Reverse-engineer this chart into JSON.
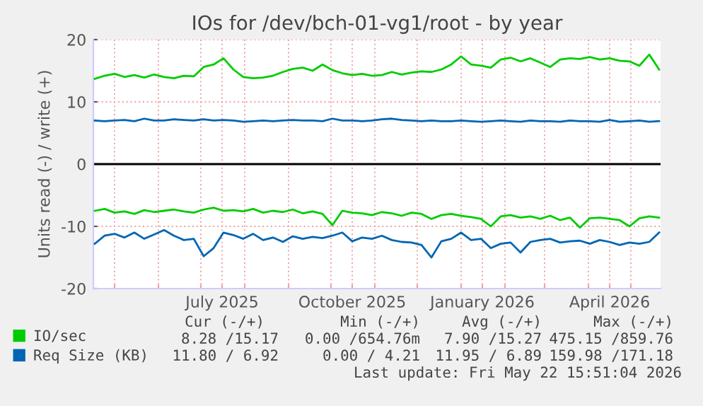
{
  "chart_data": {
    "type": "line",
    "title": "IOs for /dev/bch-01-vg1/root - by year",
    "ylabel": "Units read (-) / write (+)",
    "x": [
      "2025-04-17",
      "2025-04-24",
      "2025-05-01",
      "2025-05-08",
      "2025-05-15",
      "2025-05-22",
      "2025-05-29",
      "2025-06-05",
      "2025-06-12",
      "2025-06-19",
      "2025-06-26",
      "2025-07-03",
      "2025-07-10",
      "2025-07-17",
      "2025-07-24",
      "2025-07-31",
      "2025-08-07",
      "2025-08-14",
      "2025-08-21",
      "2025-08-28",
      "2025-09-04",
      "2025-09-11",
      "2025-09-18",
      "2025-09-25",
      "2025-10-02",
      "2025-10-09",
      "2025-10-16",
      "2025-10-23",
      "2025-10-30",
      "2025-11-06",
      "2025-11-13",
      "2025-11-20",
      "2025-11-27",
      "2025-12-04",
      "2025-12-11",
      "2025-12-18",
      "2025-12-25",
      "2026-01-01",
      "2026-01-08",
      "2026-01-15",
      "2026-01-22",
      "2026-01-29",
      "2026-02-05",
      "2026-02-12",
      "2026-02-19",
      "2026-02-26",
      "2026-03-05",
      "2026-03-12",
      "2026-03-19",
      "2026-03-26",
      "2026-04-02",
      "2026-04-09",
      "2026-04-16",
      "2026-04-23",
      "2026-04-30",
      "2026-05-07",
      "2026-05-14",
      "2026-05-21"
    ],
    "series": [
      {
        "name": "IO/sec",
        "color": "#00cc00",
        "values": [
          13.7,
          14.2,
          14.5,
          14.0,
          14.3,
          13.9,
          14.4,
          14.0,
          13.8,
          14.2,
          14.1,
          15.6,
          16.0,
          17.0,
          15.2,
          14.0,
          13.8,
          13.9,
          14.2,
          14.8,
          15.3,
          15.5,
          15.0,
          16.0,
          15.1,
          14.6,
          14.3,
          14.5,
          14.2,
          14.3,
          14.8,
          14.4,
          14.7,
          14.9,
          14.8,
          15.2,
          16.0,
          17.3,
          16.0,
          15.8,
          15.5,
          16.8,
          17.1,
          16.5,
          17.0,
          16.3,
          15.6,
          16.8,
          17.0,
          16.9,
          17.2,
          16.8,
          17.0,
          16.6,
          16.5,
          15.8,
          17.6,
          15.2
        ]
      },
      {
        "color": "#00cc00",
        "values": [
          -7.5,
          -7.2,
          -7.8,
          -7.6,
          -8.0,
          -7.4,
          -7.7,
          -7.5,
          -7.3,
          -7.6,
          -7.8,
          -7.3,
          -7.0,
          -7.5,
          -7.4,
          -7.6,
          -7.2,
          -7.8,
          -7.5,
          -7.7,
          -7.3,
          -7.9,
          -7.6,
          -8.0,
          -9.8,
          -7.5,
          -7.8,
          -7.9,
          -8.2,
          -7.7,
          -7.9,
          -8.3,
          -7.8,
          -8.0,
          -8.8,
          -8.2,
          -8.0,
          -8.3,
          -8.5,
          -8.8,
          -10.0,
          -8.4,
          -8.2,
          -8.6,
          -8.4,
          -8.8,
          -8.3,
          -9.0,
          -8.6,
          -10.2,
          -8.7,
          -8.6,
          -8.8,
          -9.0,
          -10.0,
          -8.7,
          -8.4,
          -8.6
        ]
      },
      {
        "name": "Req Size (KB)",
        "color": "#0066b3",
        "values": [
          7.0,
          6.9,
          7.0,
          7.1,
          6.9,
          7.3,
          7.0,
          7.0,
          7.2,
          7.1,
          7.0,
          7.2,
          7.0,
          7.1,
          7.0,
          6.8,
          6.9,
          7.0,
          6.9,
          7.0,
          7.1,
          7.0,
          7.0,
          6.9,
          7.3,
          7.0,
          7.0,
          6.9,
          7.0,
          7.2,
          7.3,
          7.1,
          7.0,
          6.9,
          7.0,
          6.9,
          6.9,
          7.0,
          6.9,
          6.8,
          6.9,
          7.0,
          6.9,
          6.8,
          7.0,
          6.9,
          6.9,
          6.8,
          7.0,
          6.9,
          6.9,
          6.8,
          7.1,
          6.8,
          6.9,
          7.0,
          6.8,
          6.9
        ]
      },
      {
        "color": "#0066b3",
        "values": [
          -12.8,
          -11.5,
          -11.2,
          -11.8,
          -11.0,
          -12.0,
          -11.3,
          -10.6,
          -11.5,
          -12.2,
          -12.0,
          -14.8,
          -13.5,
          -11.0,
          -11.4,
          -12.0,
          -11.2,
          -12.2,
          -11.8,
          -12.5,
          -11.6,
          -12.0,
          -11.7,
          -11.9,
          -11.5,
          -11.0,
          -12.4,
          -11.8,
          -12.0,
          -11.5,
          -12.2,
          -12.5,
          -12.6,
          -13.0,
          -15.0,
          -12.4,
          -12.0,
          -11.0,
          -12.2,
          -12.0,
          -13.5,
          -12.8,
          -12.6,
          -14.2,
          -12.5,
          -12.2,
          -12.0,
          -12.6,
          -12.4,
          -12.3,
          -12.8,
          -12.2,
          -12.5,
          -13.0,
          -12.6,
          -12.8,
          -12.5,
          -11.0
        ]
      }
    ],
    "xlim": [
      "2025-04-16",
      "2026-05-22"
    ],
    "xticks": [
      {
        "value": "2025-05-01",
        "label": null
      },
      {
        "value": "2025-06-01",
        "label": null
      },
      {
        "value": "2025-07-01",
        "label": null
      },
      {
        "value": "2025-07-16",
        "label": "July 2025"
      },
      {
        "value": "2025-08-01",
        "label": null
      },
      {
        "value": "2025-09-01",
        "label": null
      },
      {
        "value": "2025-10-01",
        "label": null
      },
      {
        "value": "2025-10-16",
        "label": "October 2025"
      },
      {
        "value": "2025-11-01",
        "label": null
      },
      {
        "value": "2025-12-01",
        "label": null
      },
      {
        "value": "2026-01-01",
        "label": null
      },
      {
        "value": "2026-01-16",
        "label": "January 2026"
      },
      {
        "value": "2026-02-01",
        "label": null
      },
      {
        "value": "2026-03-01",
        "label": null
      },
      {
        "value": "2026-04-01",
        "label": null
      },
      {
        "value": "2026-04-16",
        "label": "April 2026"
      },
      {
        "value": "2026-05-01",
        "label": null
      }
    ],
    "ylim": [
      -20,
      20
    ],
    "yticks": [
      -20,
      -10,
      0,
      10,
      20
    ],
    "ref_lines": [
      {
        "axis": "y",
        "value": 0,
        "color": "#000000"
      }
    ],
    "grid": true,
    "legend": "bottom",
    "line_style": "solid",
    "marker": "none",
    "annotations": [
      "Cur (-/+)",
      "Min (-/+)",
      "Avg (-/+)",
      "Max (-/+)",
      "8.28 /15.17",
      "0.00 /654.76m",
      "7.90 /15.27",
      "475.15 /859.76",
      "11.80 / 6.92",
      "0.00 / 4.21",
      "11.95 / 6.89",
      "159.98 /171.18",
      "Last update: Fri May 22 15:51:04 2026"
    ]
  }
}
